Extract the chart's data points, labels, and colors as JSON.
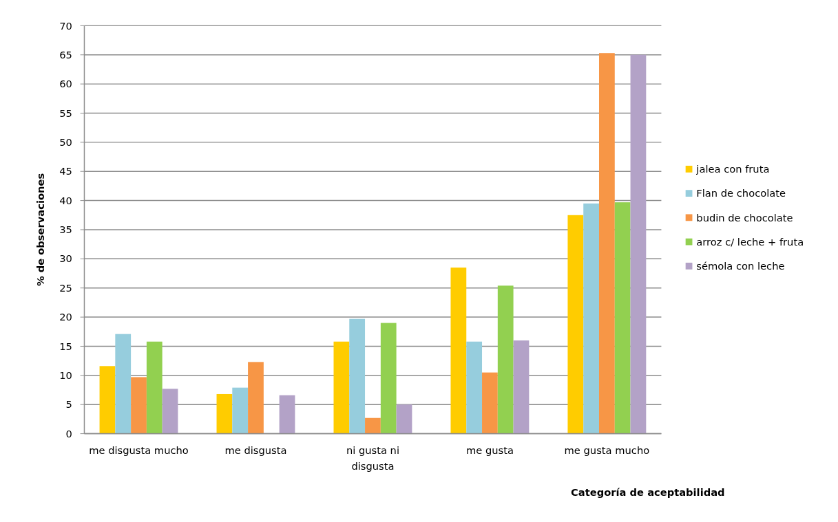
{
  "chart_data": {
    "type": "bar",
    "xlabel": "Categoría de aceptabilidad",
    "ylabel": "% de observaciones",
    "categories": [
      "me disgusta mucho",
      "me disgusta",
      "ni gusta ni disgusta",
      "me gusta",
      "me gusta mucho"
    ],
    "series": [
      {
        "name": "jalea con fruta",
        "color": "#ffcc00",
        "values": [
          11.6,
          6.8,
          15.8,
          28.5,
          37.5
        ]
      },
      {
        "name": "Flan de chocolate",
        "color": "#96cddd",
        "values": [
          17.1,
          7.9,
          19.7,
          15.8,
          39.5
        ]
      },
      {
        "name": "budin de chocolate",
        "color": "#f79646",
        "values": [
          9.7,
          12.3,
          2.7,
          10.5,
          65.3
        ]
      },
      {
        "name": "arroz c/ leche + fruta",
        "color": "#92d050",
        "values": [
          15.8,
          0,
          19.0,
          25.4,
          39.7
        ]
      },
      {
        "name": "sémola con leche",
        "color": "#b3a2c7",
        "values": [
          7.7,
          6.6,
          5.0,
          16.0,
          65.0
        ]
      }
    ],
    "ylim": [
      0,
      70
    ],
    "yticks": [
      0,
      5,
      10,
      15,
      20,
      25,
      30,
      35,
      40,
      45,
      50,
      55,
      60,
      65,
      70
    ],
    "grid": "y",
    "legend": "right"
  }
}
